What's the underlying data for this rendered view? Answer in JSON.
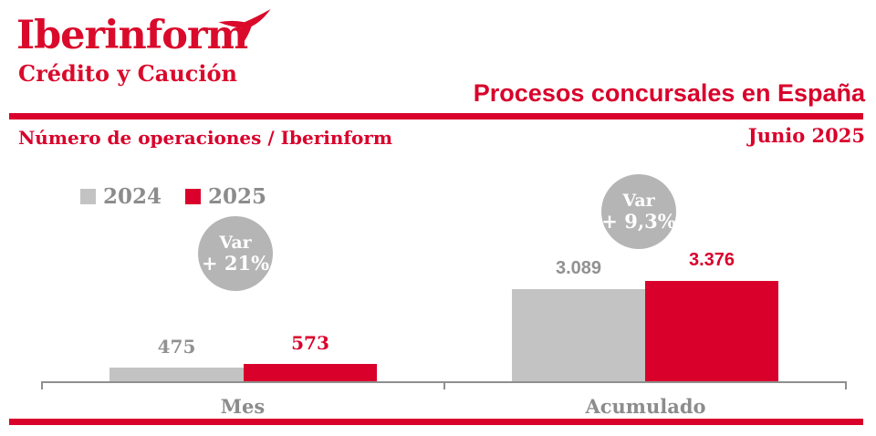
{
  "header": {
    "logo_title": "Iberinform",
    "logo_subtitle": "Crédito y Caución",
    "title": "Procesos concursales en España",
    "subtitle_left": "Número de operaciones / Iberinform",
    "date": "Junio 2025"
  },
  "colors": {
    "brand_red": "#D9002B",
    "bar_gray": "#C3C3C3",
    "circle_gray": "#B5B5B5",
    "text_gray": "#8C8C8C",
    "axis_gray": "#8F8F8F"
  },
  "chart_data": {
    "type": "bar",
    "title": "Procesos concursales en España",
    "subtitle": "Número de operaciones / Iberinform",
    "period": "Junio 2025",
    "categories": [
      "Mes",
      "Acumulado"
    ],
    "series": [
      {
        "name": "2024",
        "color": "#C3C3C3",
        "values": [
          475,
          3089
        ],
        "display": [
          "475",
          "3.089"
        ]
      },
      {
        "name": "2025",
        "color": "#D9002B",
        "values": [
          573,
          3376
        ],
        "display": [
          "573",
          "3.376"
        ]
      }
    ],
    "variations": [
      {
        "category": "Mes",
        "line1": "Var",
        "line2": "+ 21%"
      },
      {
        "category": "Acumulado",
        "line1": "Var",
        "line2": "+ 9,3%"
      }
    ],
    "ylim": [
      0,
      3376
    ],
    "grid": false,
    "legend_position": "top-left",
    "value_label_color_by_series": [
      "#919191",
      "#D9002B"
    ]
  }
}
